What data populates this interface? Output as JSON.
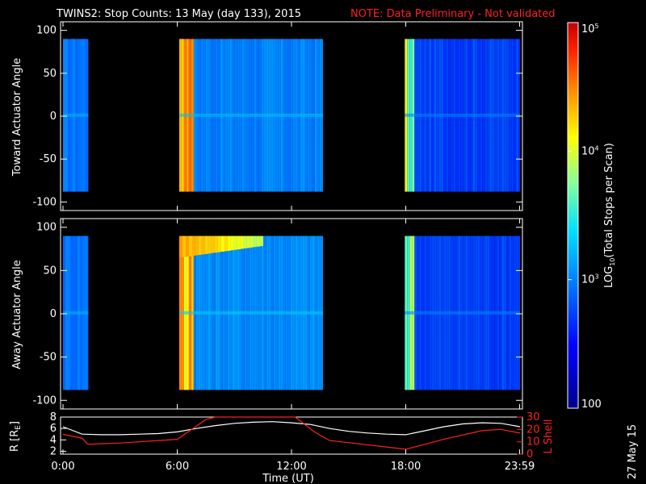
{
  "title": "TWINS2: Stop Counts: 13 May (day 133), 2015",
  "note": "NOTE: Data Preliminary - Not validated",
  "stamp": "27 May 15",
  "colors": {
    "background": "#000000",
    "text": "#ffffff",
    "note": "#ff2020",
    "r_line": "#ffffff",
    "lshell_line": "#ff2020"
  },
  "chart_data": [
    {
      "type": "heatmap",
      "panel": "top",
      "ylabel": "Toward Actuator Angle",
      "ylim": [
        -110,
        110
      ],
      "yticks": [
        100,
        50,
        0,
        -50,
        -100
      ],
      "xlim": [
        0,
        24
      ],
      "angle_range": [
        -88,
        90
      ],
      "data_segments": [
        {
          "start": 0.0,
          "end": 1.33,
          "level": 2.95
        },
        {
          "start": 6.1,
          "end": 13.65,
          "level": 3.0
        },
        {
          "start": 17.95,
          "end": 24.0,
          "level": 2.75
        }
      ],
      "high_count_bands": [
        {
          "start": 6.1,
          "end": 6.85,
          "level": 4.6
        },
        {
          "start": 17.95,
          "end": 18.4,
          "level": 4.2
        }
      ]
    },
    {
      "type": "heatmap",
      "panel": "bottom",
      "ylabel": "Away Actuator Angle",
      "ylim": [
        -110,
        110
      ],
      "yticks": [
        100,
        50,
        0,
        -50,
        -100
      ],
      "xlim": [
        0,
        24
      ],
      "angle_range": [
        -88,
        90
      ],
      "data_segments": [
        {
          "start": 0.0,
          "end": 1.33,
          "level": 2.95
        },
        {
          "start": 6.1,
          "end": 13.65,
          "level": 3.05
        },
        {
          "start": 17.95,
          "end": 24.0,
          "level": 2.75
        }
      ],
      "high_count_bands": [
        {
          "start": 6.1,
          "end": 6.85,
          "level": 4.6
        },
        {
          "start": 17.95,
          "end": 18.4,
          "level": 4.2
        }
      ],
      "high_angle_feature": {
        "start": 6.1,
        "end": 10.5,
        "angle_from": 65,
        "angle_to": 90,
        "level": 4.4
      }
    },
    {
      "type": "line",
      "panel": "orbit",
      "xlabel": "Time (UT)",
      "xticks": [
        "0:00",
        "6:00",
        "12:00",
        "18:00",
        "23:59"
      ],
      "xtick_values": [
        0,
        6,
        12,
        18,
        23.98
      ],
      "ylabel_left": "R [R",
      "ylabel_left_sub": "E",
      "ylabel_left_close": "]",
      "ylabel_right": "L Shell",
      "ylim_left": [
        1.5,
        8
      ],
      "yticks_left": [
        8,
        6,
        4,
        2
      ],
      "ylim_right": [
        0,
        30
      ],
      "yticks_right": [
        30,
        20,
        10,
        0
      ],
      "series": [
        {
          "name": "R",
          "axis": "left",
          "x": [
            0,
            1,
            2,
            3,
            4,
            5,
            6,
            7,
            8,
            9,
            10,
            11,
            12,
            13,
            14,
            15,
            16,
            17,
            18,
            19,
            20,
            21,
            22,
            23,
            24
          ],
          "y": [
            6.3,
            5.0,
            4.9,
            4.9,
            5.0,
            5.1,
            5.4,
            6.0,
            6.5,
            6.9,
            7.1,
            7.2,
            7.0,
            6.7,
            6.0,
            5.5,
            5.2,
            5.0,
            4.9,
            5.6,
            6.3,
            6.8,
            7.0,
            6.9,
            6.3
          ]
        },
        {
          "name": "L Shell",
          "axis": "right",
          "x": [
            0,
            1,
            1.3,
            3,
            6,
            7.5,
            8,
            12.2,
            13.2,
            14,
            18,
            20,
            22,
            23,
            24
          ],
          "y": [
            16,
            13,
            8,
            9,
            12,
            28,
            30,
            30,
            18,
            11,
            4,
            12,
            19,
            20,
            17
          ]
        }
      ]
    }
  ],
  "colorbar": {
    "label": "LOG",
    "label_sub": "10",
    "label_rest": "(Total Stops per Scan)",
    "range_log": [
      2,
      5
    ],
    "ticks": [
      {
        "value": 5,
        "text": "10",
        "sup": "5"
      },
      {
        "value": 4,
        "text": "10",
        "sup": "4"
      },
      {
        "value": 3,
        "text": "10",
        "sup": "3"
      },
      {
        "value": 2,
        "text": "100",
        "sup": ""
      }
    ]
  }
}
